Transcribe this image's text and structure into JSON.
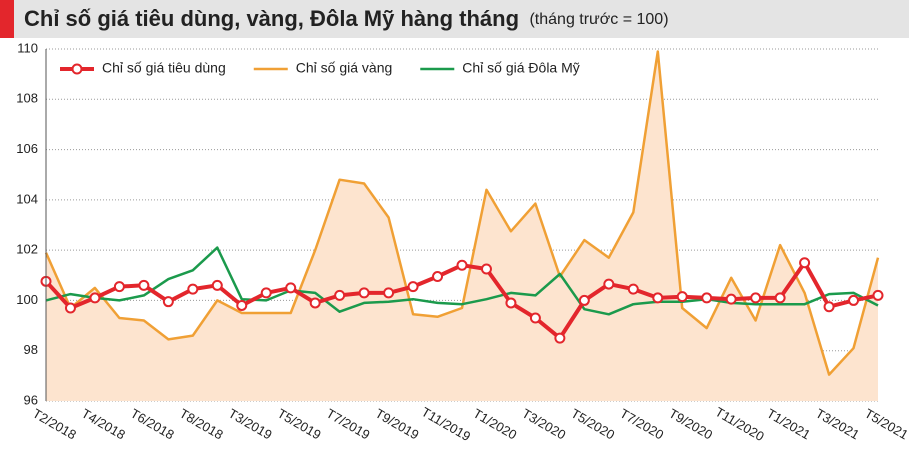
{
  "chart_data": {
    "type": "line",
    "title": "Chỉ số giá tiêu dùng, vàng, Đôla Mỹ hàng tháng",
    "subtitle": "(tháng trước = 100)",
    "categories": [
      "T2/2018",
      null,
      "T4/2018",
      null,
      "T6/2018",
      null,
      "T8/2018",
      null,
      "T3/2019",
      null,
      "T5/2019",
      null,
      "T7/2019",
      null,
      "T9/2019",
      null,
      "T11/2019",
      null,
      "T1/2020",
      null,
      "T3/2020",
      null,
      "T5/2020",
      null,
      "T7/2020",
      null,
      "T9/2020",
      null,
      "T11/2020",
      null,
      "T1/2021",
      null,
      "T3/2021",
      null,
      "T5/2021"
    ],
    "series": [
      {
        "name": "Chỉ số giá tiêu dùng",
        "color": "#e3262c",
        "markers": true,
        "values": [
          100.76,
          99.7,
          100.1,
          100.55,
          100.6,
          99.95,
          100.45,
          100.6,
          99.8,
          100.3,
          100.5,
          99.9,
          100.2,
          100.3,
          100.3,
          100.55,
          100.95,
          101.4,
          101.25,
          99.9,
          99.3,
          98.5,
          100.0,
          100.65,
          100.45,
          100.1,
          100.15,
          100.1,
          100.05,
          100.1,
          100.1,
          101.5,
          99.75,
          100.0,
          100.2
        ]
      },
      {
        "name": "Chỉ số giá vàng",
        "color": "#f0a035",
        "area_color": "#fde4cf",
        "fill": true,
        "values": [
          101.9,
          99.7,
          100.5,
          99.3,
          99.2,
          98.45,
          98.6,
          100.0,
          99.5,
          99.5,
          99.5,
          102.0,
          104.8,
          104.65,
          103.3,
          99.45,
          99.35,
          99.7,
          104.4,
          102.75,
          103.85,
          100.95,
          102.4,
          101.7,
          103.5,
          109.9,
          99.7,
          98.9,
          100.9,
          99.2,
          102.2,
          100.3,
          97.05,
          98.1,
          101.7
        ]
      },
      {
        "name": "Chỉ số giá Đôla Mỹ",
        "color": "#1b9a4c",
        "values": [
          100.0,
          100.25,
          100.1,
          100.0,
          100.2,
          100.85,
          101.2,
          102.1,
          100.05,
          100.0,
          100.4,
          100.3,
          99.55,
          99.9,
          99.95,
          100.05,
          99.9,
          99.85,
          100.05,
          100.3,
          100.2,
          101.05,
          99.65,
          99.45,
          99.85,
          99.95,
          99.95,
          100.05,
          99.9,
          99.85,
          99.85,
          99.85,
          100.25,
          100.3,
          99.8
        ]
      }
    ],
    "ylim": [
      96,
      110
    ],
    "yticks": [
      96,
      98,
      100,
      102,
      104,
      106,
      108,
      110
    ],
    "grid": true,
    "legend": "top-left"
  }
}
